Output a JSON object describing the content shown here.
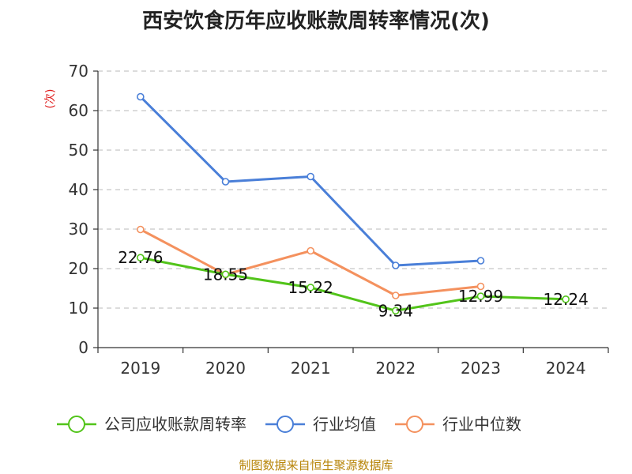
{
  "title": "西安饮食历年应收账款周转率情况(次)",
  "source": "制图数据来自恒生聚源数据库",
  "chart_data": {
    "type": "line",
    "title": "西安饮食历年应收账款周转率情况(次)",
    "ylabel": "(次)",
    "ylim": [
      0,
      70
    ],
    "yticks": [
      0,
      10,
      20,
      30,
      40,
      50,
      60,
      70
    ],
    "grid": true,
    "legend_position": "bottom",
    "categories": [
      "2019",
      "2020",
      "2021",
      "2022",
      "2023",
      "2024"
    ],
    "series": [
      {
        "name": "公司应收账款周转率",
        "color": "#52c41a",
        "values": [
          22.76,
          18.55,
          15.22,
          9.34,
          12.99,
          12.24
        ],
        "labels": [
          "22.76",
          "18.55",
          "15.22",
          "9.34",
          "12.99",
          "12.24"
        ]
      },
      {
        "name": "行业均值",
        "color": "#4a7fd8",
        "values": [
          63.5,
          42.0,
          43.3,
          20.8,
          22.0,
          null
        ]
      },
      {
        "name": "行业中位数",
        "color": "#f4915e",
        "values": [
          29.9,
          18.5,
          24.5,
          13.2,
          15.5,
          null
        ]
      }
    ]
  }
}
